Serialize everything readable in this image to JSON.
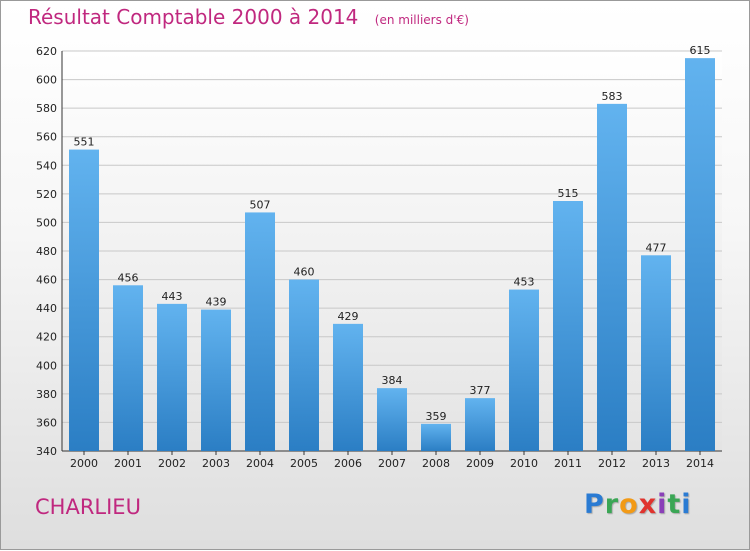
{
  "title": "Résultat Comptable 2000 à 2014",
  "subtitle": "(en milliers d'€)",
  "commune": "CHARLIEU",
  "logo": {
    "letters": [
      "P",
      "r",
      "o",
      "x",
      "i",
      "t",
      "i"
    ],
    "colors": [
      "#2a7bd3",
      "#3aa655",
      "#f29a16",
      "#e0332e",
      "#8a3fb8",
      "#3aa655",
      "#2a7bd3"
    ]
  },
  "colors": {
    "bar_light": "#62b3ef",
    "bar_dark": "#2b7ec4",
    "title": "#c0287f"
  },
  "chart_data": {
    "type": "bar",
    "categories": [
      "2000",
      "2001",
      "2002",
      "2003",
      "2004",
      "2005",
      "2006",
      "2007",
      "2008",
      "2009",
      "2010",
      "2011",
      "2012",
      "2013",
      "2014"
    ],
    "values": [
      551,
      456,
      443,
      439,
      507,
      460,
      429,
      384,
      359,
      377,
      453,
      515,
      583,
      477,
      615
    ],
    "ylim": [
      340,
      620
    ],
    "yticks": [
      340,
      360,
      380,
      400,
      420,
      440,
      460,
      480,
      500,
      520,
      540,
      560,
      580,
      600,
      620
    ],
    "grid": true
  }
}
